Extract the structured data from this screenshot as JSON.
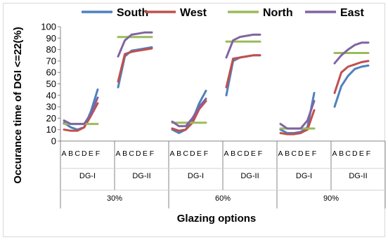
{
  "chart_data": {
    "type": "line",
    "xlabel": "Glazing options",
    "ylabel": "Occurance time of DGI <=22(%)",
    "ylim": [
      0,
      100
    ],
    "yticks": [
      0,
      10,
      20,
      30,
      40,
      50,
      60,
      70,
      80,
      90,
      100
    ],
    "legend_position": "top",
    "groups": [
      {
        "label": "30%",
        "subgroups": [
          {
            "label": "DG-I",
            "categories": [
              "A",
              "B",
              "C",
              "D",
              "E",
              "F"
            ]
          },
          {
            "label": "DG-II",
            "categories": [
              "A",
              "B",
              "C",
              "D",
              "E",
              "F"
            ]
          }
        ]
      },
      {
        "label": "60%",
        "subgroups": [
          {
            "label": "DG-I",
            "categories": [
              "A",
              "B",
              "C",
              "D",
              "E",
              "F"
            ]
          },
          {
            "label": "DG-II",
            "categories": [
              "A",
              "B",
              "C",
              "D",
              "E",
              "F"
            ]
          }
        ]
      },
      {
        "label": "90%",
        "subgroups": [
          {
            "label": "DG-I",
            "categories": [
              "A",
              "B",
              "C",
              "D",
              "E",
              "F"
            ]
          },
          {
            "label": "DG-II",
            "categories": [
              "A",
              "B",
              "C",
              "D",
              "E",
              "F"
            ]
          }
        ]
      }
    ],
    "series": [
      {
        "name": "South",
        "color": "#4f81bd",
        "segments": [
          [
            16,
            12,
            10,
            12,
            26,
            45
          ],
          [
            47,
            74,
            79,
            80,
            81,
            82
          ],
          [
            10,
            7,
            10,
            18,
            33,
            44
          ],
          [
            40,
            70,
            73,
            74,
            75,
            75
          ],
          [
            10,
            7,
            7,
            8,
            12,
            42
          ],
          [
            30,
            48,
            57,
            63,
            65,
            66
          ]
        ]
      },
      {
        "name": "West",
        "color": "#c0504d",
        "segments": [
          [
            10,
            9,
            9,
            12,
            22,
            33
          ],
          [
            52,
            76,
            78,
            79,
            80,
            81
          ],
          [
            11,
            9,
            10,
            16,
            28,
            35
          ],
          [
            47,
            72,
            73,
            74,
            75,
            75
          ],
          [
            7,
            6,
            6,
            7,
            10,
            27
          ],
          [
            42,
            60,
            65,
            67,
            69,
            70
          ]
        ]
      },
      {
        "name": "North",
        "color": "#9bbb59",
        "segments": [
          [
            15,
            15,
            15,
            15,
            15,
            15
          ],
          [
            91,
            91,
            91,
            91,
            91,
            91
          ],
          [
            16,
            16,
            16,
            16,
            16,
            16
          ],
          [
            87,
            87,
            87,
            87,
            87,
            87
          ],
          [
            11,
            11,
            11,
            11,
            11,
            11
          ],
          [
            77,
            77,
            77,
            77,
            77,
            77
          ]
        ]
      },
      {
        "name": "East",
        "color": "#8064a2",
        "segments": [
          [
            18,
            15,
            15,
            15,
            24,
            38
          ],
          [
            74,
            88,
            93,
            94,
            95,
            95
          ],
          [
            17,
            13,
            13,
            20,
            30,
            37
          ],
          [
            73,
            88,
            91,
            92,
            93,
            93
          ],
          [
            15,
            11,
            11,
            11,
            18,
            35
          ],
          [
            68,
            75,
            80,
            84,
            86,
            86
          ]
        ]
      }
    ]
  }
}
